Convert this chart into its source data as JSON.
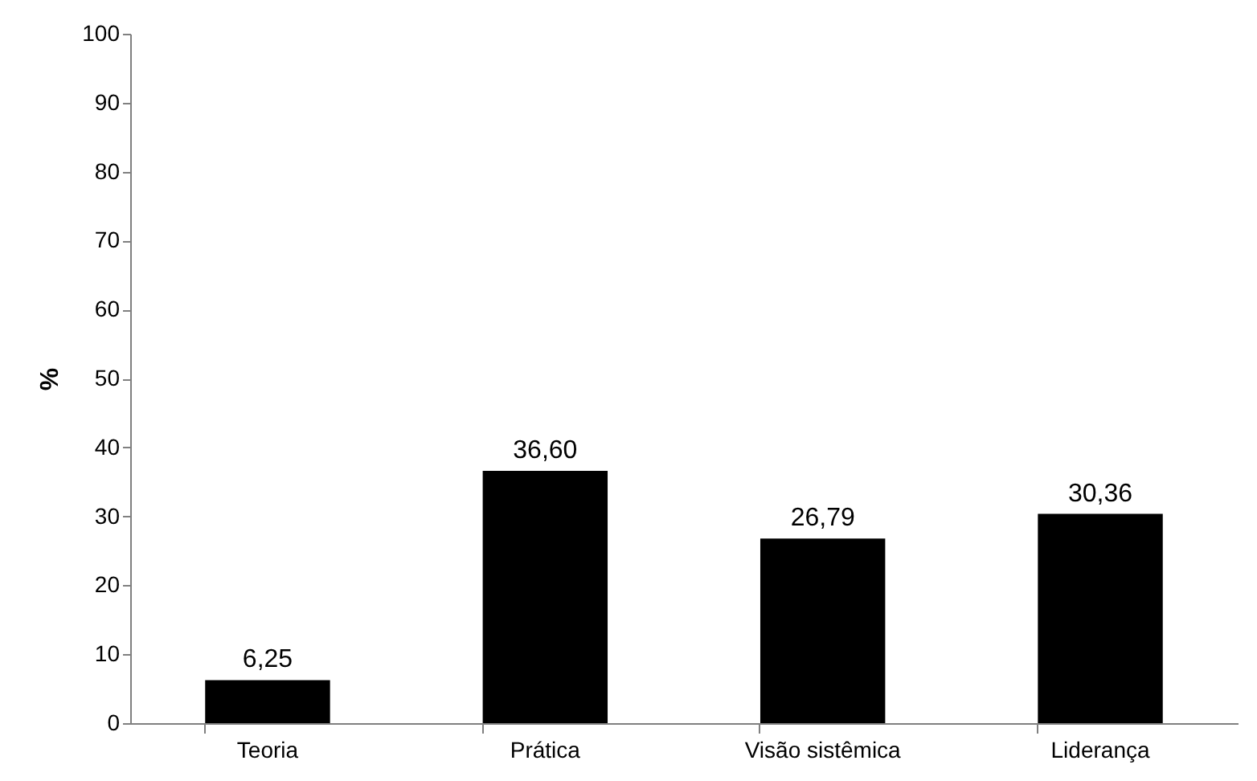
{
  "chart_data": {
    "type": "bar",
    "ylabel": "%",
    "categories": [
      "Teoria",
      "Prática",
      "Visão sistêmica",
      "Liderança"
    ],
    "values": [
      6.25,
      36.6,
      26.79,
      30.36
    ],
    "value_labels": [
      "6,25",
      "36,60",
      "26,79",
      "30,36"
    ],
    "color": "#000000",
    "ylim": [
      0,
      100
    ],
    "yticks": [
      0,
      10,
      20,
      30,
      40,
      50,
      60,
      70,
      80,
      90,
      100
    ],
    "grid": false
  }
}
